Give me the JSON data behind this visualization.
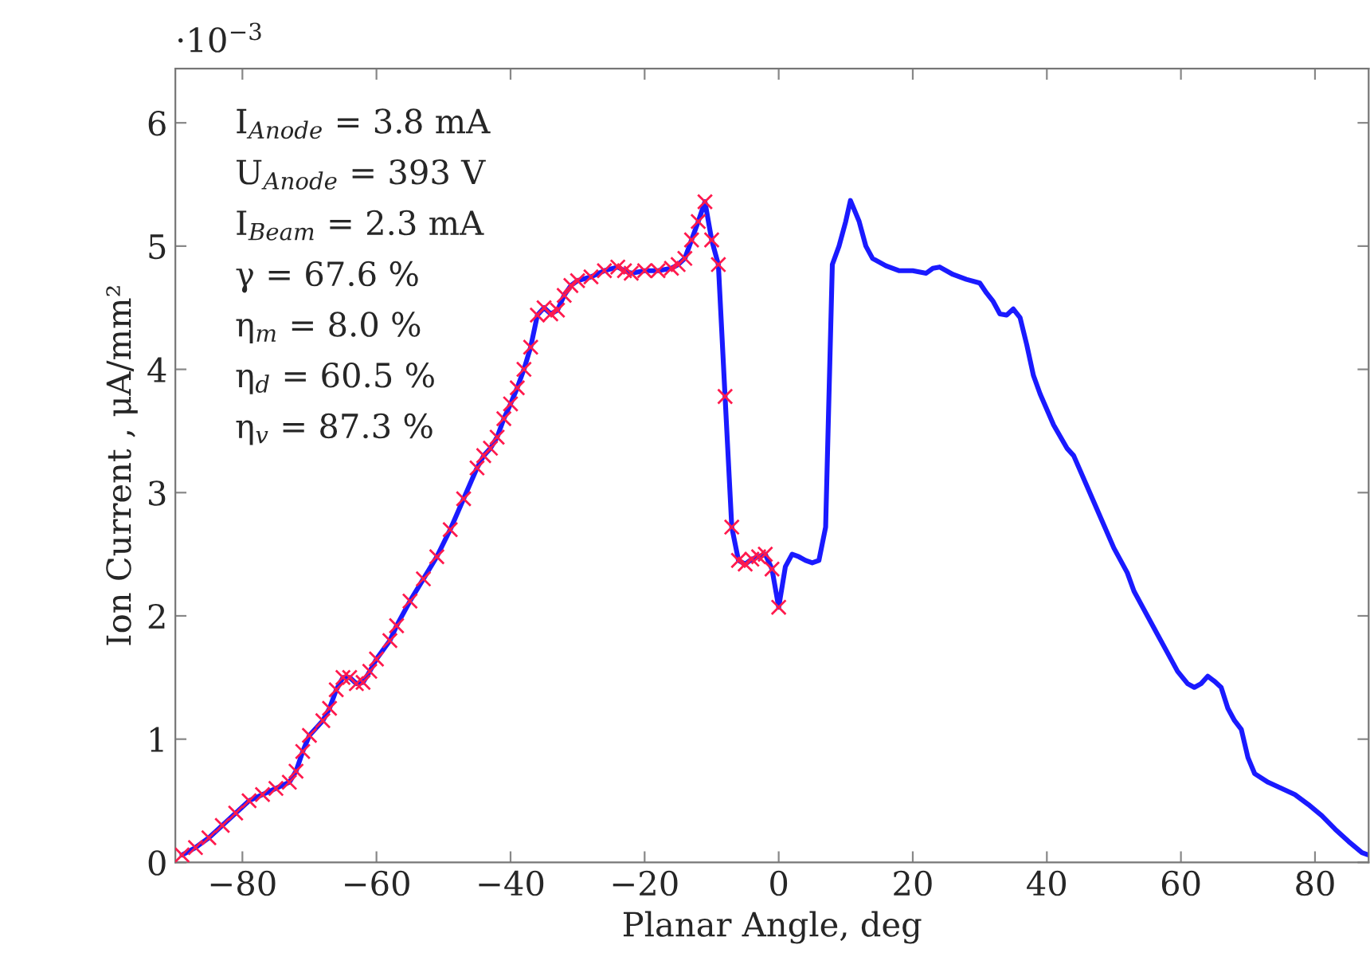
{
  "chart_data": {
    "type": "line",
    "xlabel": "Planar Angle, deg",
    "ylabel": "Ion Current , μA/mm²",
    "xlim": [
      -90,
      88
    ],
    "ylim": [
      0,
      6.44
    ],
    "xticks": [
      -80,
      -60,
      -40,
      -20,
      0,
      20,
      40,
      60,
      80
    ],
    "yticks": [
      0,
      1,
      2,
      3,
      4,
      5,
      6
    ],
    "grid": false,
    "legend": false,
    "annotations": [
      "·10$^{−3}$",
      "I$_{Anode}$ = 3.8 mA",
      "U$_{Anode}$ = 393 V",
      "I$_{Beam}$ = 2.3 mA",
      "γ = 67.6 %",
      "η$_{m}$ = 8.0 %",
      "η$_{d}$ = 60.5 %",
      "η$_{v}$ = 87.3 %"
    ],
    "series": [
      {
        "color": "#1a1aff",
        "marker": "none",
        "line_style": "solid",
        "x": [
          -89,
          -87,
          -85,
          -83,
          -81,
          -79,
          -77,
          -75,
          -73,
          -72,
          -71,
          -70,
          -68,
          -67,
          -66,
          -65,
          -64,
          -63,
          -62,
          -61,
          -60,
          -58,
          -57,
          -55,
          -53,
          -51,
          -49,
          -47,
          -45,
          -44,
          -43,
          -42,
          -41,
          -40,
          -39,
          -38,
          -37,
          -36,
          -35,
          -34,
          -33,
          -32,
          -31,
          -30,
          -28,
          -26,
          -24,
          -23,
          -22,
          -20,
          -18,
          -16,
          -15,
          -14,
          -13,
          -12,
          -11,
          -10,
          -9,
          -8,
          -7,
          -6,
          -5,
          -4,
          -3,
          -2,
          -1,
          0,
          1,
          2,
          3,
          4,
          5,
          6,
          7,
          8,
          9,
          10,
          10.7,
          12,
          13,
          14,
          16,
          18,
          20,
          22,
          23,
          24,
          26,
          28,
          30,
          31,
          32,
          33,
          34,
          35,
          36,
          37,
          38,
          39,
          41,
          43,
          44,
          46,
          48,
          50,
          52,
          53,
          55,
          56.5,
          58,
          59.5,
          61,
          62,
          63,
          64,
          65,
          66,
          67,
          68,
          69,
          70,
          71,
          73,
          75,
          77,
          79,
          81,
          83,
          85,
          87,
          88
        ],
        "values": [
          0.06,
          0.12,
          0.2,
          0.3,
          0.4,
          0.5,
          0.55,
          0.6,
          0.65,
          0.74,
          0.9,
          1.03,
          1.15,
          1.25,
          1.4,
          1.5,
          1.5,
          1.45,
          1.46,
          1.55,
          1.65,
          1.8,
          1.92,
          2.12,
          2.3,
          2.48,
          2.7,
          2.95,
          3.2,
          3.3,
          3.36,
          3.45,
          3.6,
          3.72,
          3.85,
          4.0,
          4.18,
          4.44,
          4.5,
          4.45,
          4.48,
          4.6,
          4.68,
          4.72,
          4.75,
          4.8,
          4.83,
          4.8,
          4.78,
          4.8,
          4.8,
          4.82,
          4.85,
          4.9,
          5.05,
          5.2,
          5.36,
          5.05,
          4.85,
          3.78,
          2.72,
          2.45,
          2.42,
          2.46,
          2.48,
          2.5,
          2.38,
          2.07,
          2.4,
          2.5,
          2.48,
          2.45,
          2.43,
          2.45,
          2.72,
          4.85,
          5.0,
          5.2,
          5.37,
          5.2,
          5.0,
          4.9,
          4.84,
          4.8,
          4.8,
          4.78,
          4.82,
          4.83,
          4.77,
          4.73,
          4.7,
          4.62,
          4.55,
          4.45,
          4.44,
          4.49,
          4.42,
          4.2,
          3.95,
          3.8,
          3.55,
          3.36,
          3.3,
          3.05,
          2.8,
          2.55,
          2.35,
          2.2,
          2.0,
          1.85,
          1.7,
          1.55,
          1.45,
          1.42,
          1.45,
          1.51,
          1.47,
          1.42,
          1.25,
          1.15,
          1.08,
          0.85,
          0.72,
          0.65,
          0.6,
          0.55,
          0.47,
          0.38,
          0.27,
          0.17,
          0.08,
          0.06
        ]
      },
      {
        "type": "scatter",
        "color": "#ff1a4d",
        "marker": "cross",
        "x": [
          -89,
          -87,
          -85,
          -83,
          -81,
          -79,
          -77,
          -75,
          -73,
          -72,
          -71,
          -70,
          -68,
          -67,
          -66,
          -65,
          -64,
          -63,
          -62,
          -61,
          -60,
          -58,
          -57,
          -55,
          -53,
          -51,
          -49,
          -47,
          -45,
          -44,
          -43,
          -42,
          -41,
          -40,
          -39,
          -38,
          -37,
          -36,
          -35,
          -34,
          -33,
          -32,
          -31,
          -30,
          -28,
          -26,
          -24,
          -23,
          -22,
          -20,
          -18,
          -16,
          -15,
          -14,
          -13,
          -12,
          -11,
          -10,
          -9,
          -8,
          -7,
          -6,
          -5,
          -4,
          -3,
          -2,
          -1,
          0
        ],
        "values": [
          0.06,
          0.12,
          0.2,
          0.3,
          0.4,
          0.5,
          0.55,
          0.6,
          0.65,
          0.74,
          0.9,
          1.03,
          1.15,
          1.25,
          1.4,
          1.5,
          1.5,
          1.45,
          1.46,
          1.55,
          1.65,
          1.8,
          1.92,
          2.12,
          2.3,
          2.48,
          2.7,
          2.95,
          3.2,
          3.3,
          3.36,
          3.45,
          3.6,
          3.72,
          3.85,
          4.0,
          4.18,
          4.44,
          4.5,
          4.45,
          4.48,
          4.6,
          4.68,
          4.72,
          4.75,
          4.8,
          4.83,
          4.8,
          4.78,
          4.8,
          4.8,
          4.82,
          4.85,
          4.9,
          5.05,
          5.2,
          5.36,
          5.05,
          4.85,
          3.78,
          2.72,
          2.45,
          2.42,
          2.46,
          2.48,
          2.5,
          2.38,
          2.07
        ]
      }
    ]
  }
}
